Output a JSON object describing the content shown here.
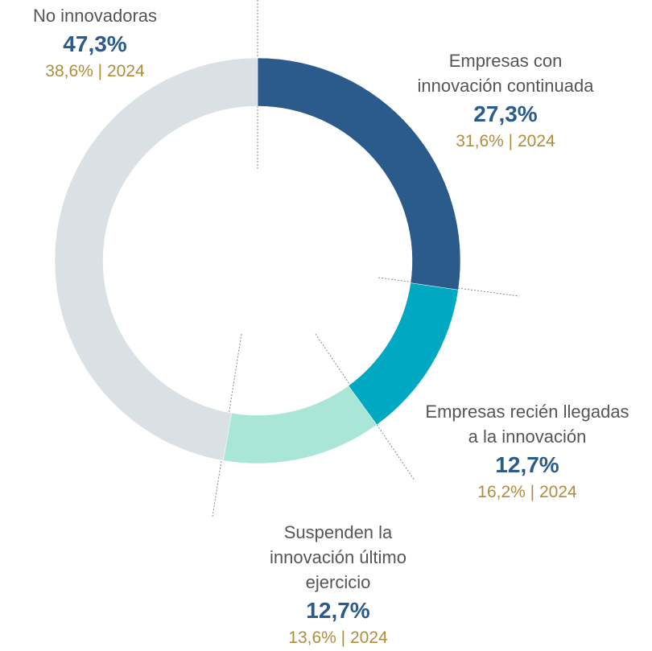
{
  "chart_data": {
    "type": "donut",
    "categories": [
      "Empresas con innovación continuada",
      "Empresas recién llegadas a la innovación",
      "Suspenden la innovación último ejercicio",
      "No innovadoras"
    ],
    "values": [
      27.3,
      12.7,
      12.7,
      47.3
    ],
    "value_labels": [
      "27,3%",
      "12,7%",
      "12,7%",
      "47,3%"
    ],
    "comparison_labels": [
      "31,6% | 2024",
      "16,2% | 2024",
      "13,6% | 2024",
      "38,6% | 2024"
    ],
    "colors": [
      "#2b5b8a",
      "#00a8c2",
      "#a9e6d7",
      "#d9e1e4"
    ]
  }
}
